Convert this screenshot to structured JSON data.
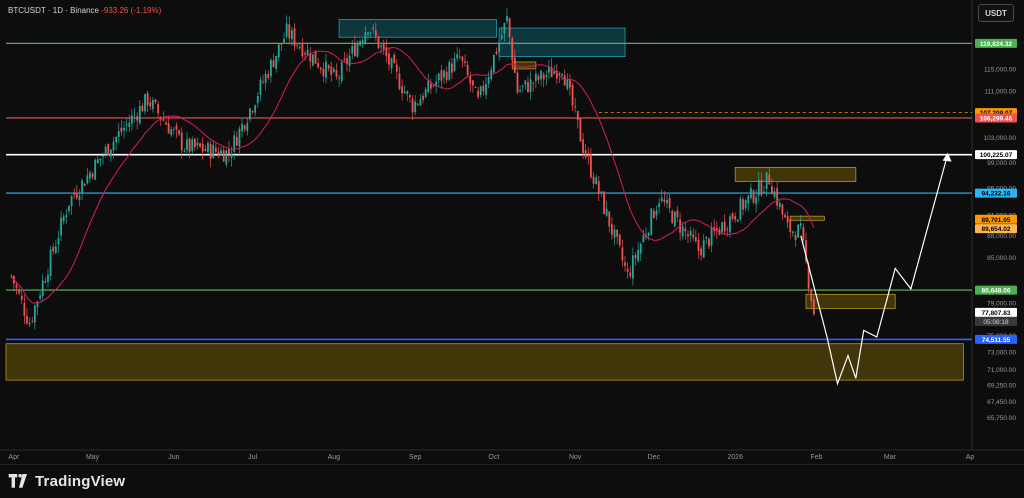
{
  "header": {
    "symbol_line": "BTCUSDT · 1D · Binance",
    "change": "-933.26 (-1.19%)",
    "currency_button": "USDT"
  },
  "footer": {
    "brand": "TradingView"
  },
  "colors": {
    "bull": "#26a69a",
    "bear": "#ef5350",
    "ma": "#d81b60",
    "green_line": "#66bb6a",
    "cyan_line": "#29b6f6",
    "blue_line": "#2962ff",
    "white_line": "#ffffff",
    "demand_zone": "#6b5a0a",
    "supply_zone": "#0e5a66"
  },
  "chart_data": {
    "type": "candlestick",
    "symbol": "BTCUSDT",
    "interval": "1D",
    "exchange": "Binance",
    "last_price": 77807.83,
    "countdown": "05:08:18",
    "y_scale": "log",
    "ylim": [
      63000,
      126000
    ],
    "x_ticks": [
      "Apr",
      "May",
      "Jun",
      "Jul",
      "Aug",
      "Sep",
      "Oct",
      "Nov",
      "Dec",
      "2026",
      "Feb",
      "Mar",
      "Ap"
    ],
    "y_ticks": [
      "115,000.00",
      "111,000.00",
      "103,000.00",
      "99,000.00",
      "95,000.00",
      "91,000.00",
      "88,000.00",
      "85,000.00",
      "79,000.00",
      "75,000.00",
      "73,000.00",
      "71,000.00",
      "69,250.00",
      "67,450.00",
      "65,750.00"
    ],
    "price_labels": [
      {
        "value": "119,824.32",
        "price": 119824.32,
        "color": "#4caf50",
        "text_color": "#ffffff"
      },
      {
        "value": "107,209.07",
        "price": 107209.07,
        "color": "#ff9800",
        "text_color": "#000000"
      },
      {
        "value": "106,299.46",
        "price": 106299.46,
        "color": "#ef5350",
        "text_color": "#ffffff"
      },
      {
        "value": "100,225.07",
        "price": 100225.07,
        "color": "#ffffff",
        "text_color": "#000000"
      },
      {
        "value": "94,232.16",
        "price": 94232.16,
        "color": "#29b6f6",
        "text_color": "#000000"
      },
      {
        "value": "89,701.05",
        "price": 89701.05,
        "color": "#ff9800",
        "text_color": "#000000"
      },
      {
        "value": "89,654.02",
        "price": 89654.02,
        "color": "#ffb74d",
        "text_color": "#000000"
      },
      {
        "value": "80,648.06",
        "price": 80648.06,
        "color": "#4caf50",
        "text_color": "#ffffff"
      },
      {
        "value": "77,807.83",
        "price": 77807.83,
        "color": "#ffffff",
        "text_color": "#000000"
      },
      {
        "value": "74,511.55",
        "price": 74511.55,
        "color": "#2962ff",
        "text_color": "#ffffff"
      }
    ],
    "horizontal_lines": [
      {
        "name": "resistance-119824",
        "price": 119824.32,
        "color": "#66bb6a"
      },
      {
        "name": "level-106299",
        "price": 106299.46,
        "color": "#ef5350"
      },
      {
        "name": "level-100225",
        "price": 100225.07,
        "color": "#ffffff"
      },
      {
        "name": "level-94232",
        "price": 94232.16,
        "color": "#29b6f6"
      },
      {
        "name": "level-80648",
        "price": 80648.06,
        "color": "#66bb6a"
      },
      {
        "name": "support-74511",
        "price": 74511.55,
        "color": "#2962ff"
      }
    ],
    "zones": [
      {
        "name": "demand-zone-low",
        "date_from": "2025-03-29",
        "date_to": "2026-03-29",
        "price_from": 69800,
        "price_to": 74000,
        "color": "#6b5a0a"
      },
      {
        "name": "supply-zone-oct",
        "date_from": "2025-10-03",
        "date_to": "2025-11-20",
        "price_from": 117300,
        "price_to": 122800,
        "color": "#0e5a66"
      },
      {
        "name": "supply-zone-jul",
        "date_from": "2025-08-03",
        "date_to": "2025-10-02",
        "price_from": 121000,
        "price_to": 124500,
        "color": "#0e5a66"
      },
      {
        "name": "order-block-jan",
        "date_from": "2026-01-01",
        "date_to": "2026-02-16",
        "price_from": 96000,
        "price_to": 98200,
        "color": "#6b5a0a"
      },
      {
        "name": "order-block-feb",
        "date_from": "2026-01-28",
        "date_to": "2026-03-03",
        "price_from": 78300,
        "price_to": 80100,
        "color": "#6b5a0a"
      },
      {
        "name": "order-block-oct",
        "date_from": "2025-10-08",
        "date_to": "2025-10-17",
        "price_from": 115000,
        "price_to": 116300,
        "color": "#6b5a0a"
      },
      {
        "name": "order-block-jan2",
        "date_from": "2026-01-22",
        "date_to": "2026-02-04",
        "price_from": 90200,
        "price_to": 90800,
        "color": "#6b5a0a"
      }
    ],
    "projection_path": [
      {
        "date": "2026-01-26",
        "price": 88000
      },
      {
        "date": "2026-02-05",
        "price": 74800
      },
      {
        "date": "2026-02-09",
        "price": 69400
      },
      {
        "date": "2026-02-13",
        "price": 72600
      },
      {
        "date": "2026-02-16",
        "price": 70000
      },
      {
        "date": "2026-02-19",
        "price": 75600
      },
      {
        "date": "2026-02-24",
        "price": 74800
      },
      {
        "date": "2026-03-03",
        "price": 83500
      },
      {
        "date": "2026-03-09",
        "price": 80800
      },
      {
        "date": "2026-03-23",
        "price": 100225
      }
    ],
    "key_points": [
      {
        "date": "2025-04-07",
        "price": 74500,
        "note": "April low"
      },
      {
        "date": "2025-10-06",
        "price": 126000,
        "note": "all-time high"
      },
      {
        "date": "2025-11-21",
        "price": 80600,
        "note": "November low"
      },
      {
        "date": "2026-01-14",
        "price": 97900,
        "note": "January high"
      },
      {
        "date": "2026-01-31",
        "price": 77807.83,
        "note": "last"
      }
    ],
    "moving_average": {
      "period": 20,
      "color": "#d81b60"
    }
  }
}
